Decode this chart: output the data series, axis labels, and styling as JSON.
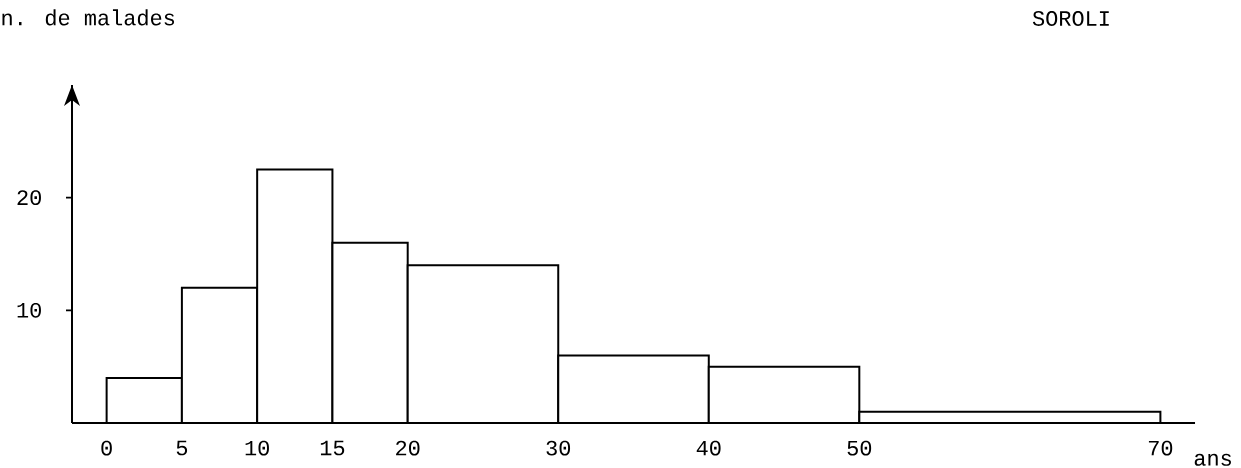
{
  "chart_data": {
    "type": "histogram",
    "title": "SOROLI",
    "xlabel": "ans",
    "ylabel": "n. de malades",
    "bins": [
      0,
      5,
      10,
      15,
      20,
      30,
      40,
      50,
      70
    ],
    "values": [
      4,
      12,
      22.5,
      16,
      14,
      6,
      5,
      1
    ],
    "color": "#000000",
    "xlim": [
      -2.3,
      72.3
    ],
    "ylim": [
      0,
      30
    ],
    "xticks": [
      0,
      5,
      10,
      15,
      20,
      30,
      40,
      50,
      70
    ],
    "yticks": [
      10,
      20
    ],
    "grid": false
  }
}
